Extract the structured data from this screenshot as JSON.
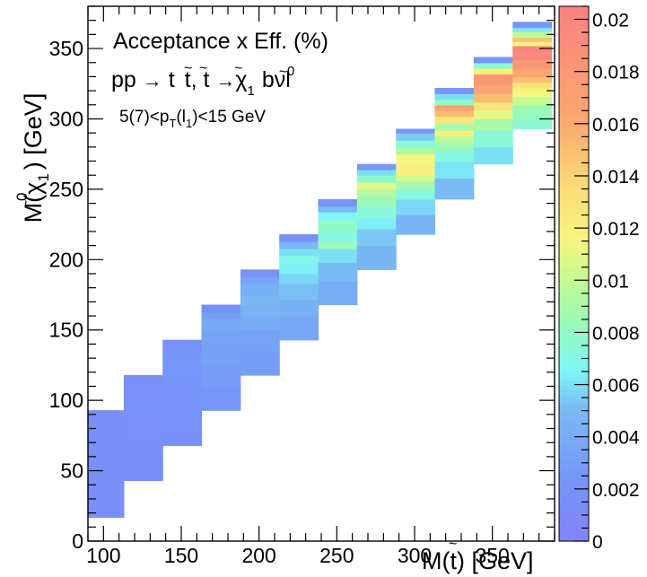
{
  "chart_data": {
    "type": "heatmap",
    "title": "",
    "xlabel": "M(t̃) [GeV]",
    "ylabel": "M(χ̃₁⁰) [GeV]",
    "xlim": [
      90,
      390
    ],
    "ylim": [
      0,
      380
    ],
    "xticks": [
      100,
      150,
      200,
      250,
      300,
      350
    ],
    "yticks": [
      0,
      50,
      100,
      150,
      200,
      250,
      300,
      350
    ],
    "zlim": [
      0,
      0.0205
    ],
    "zticks": [
      0,
      0.002,
      0.004,
      0.006,
      0.008,
      0.01,
      0.012,
      0.014,
      0.016,
      0.018,
      0.02
    ],
    "annotations": {
      "line1": "Acceptance x Eff. (%)",
      "line2_process": "pp → t̃ t̃,  t̃ → χ̃₁⁰ bνl",
      "line3_cut": "5(7)<pT(l1)<15 GeV"
    },
    "columns": [
      {
        "x": [
          88,
          113
        ],
        "cells": [
          [
            17,
            27,
            0.0015
          ],
          [
            27,
            40,
            0.0016
          ],
          [
            40,
            52,
            0.0016
          ],
          [
            52,
            64,
            0.0017
          ],
          [
            64,
            76,
            0.0017
          ],
          [
            76,
            85,
            0.0016
          ],
          [
            85,
            93,
            0.0015
          ]
        ]
      },
      {
        "x": [
          113,
          138
        ],
        "cells": [
          [
            43,
            55,
            0.0016
          ],
          [
            55,
            70,
            0.0017
          ],
          [
            70,
            80,
            0.0018
          ],
          [
            80,
            93,
            0.0018
          ],
          [
            93,
            101,
            0.0019
          ],
          [
            101,
            110,
            0.0018
          ],
          [
            110,
            118,
            0.0016
          ]
        ]
      },
      {
        "x": [
          138,
          163
        ],
        "cells": [
          [
            68,
            80,
            0.0017
          ],
          [
            80,
            95,
            0.0019
          ],
          [
            95,
            110,
            0.0021
          ],
          [
            110,
            120,
            0.0022
          ],
          [
            120,
            130,
            0.0025
          ],
          [
            130,
            137,
            0.0023
          ],
          [
            137,
            143,
            0.0019
          ]
        ]
      },
      {
        "x": [
          163,
          188
        ],
        "cells": [
          [
            93,
            110,
            0.0024
          ],
          [
            110,
            125,
            0.0028
          ],
          [
            125,
            140,
            0.0032
          ],
          [
            140,
            150,
            0.0034
          ],
          [
            150,
            158,
            0.0037
          ],
          [
            158,
            163,
            0.003
          ],
          [
            163,
            168,
            0.0018
          ]
        ]
      },
      {
        "x": [
          188,
          213
        ],
        "cells": [
          [
            118,
            135,
            0.003
          ],
          [
            135,
            150,
            0.0034
          ],
          [
            150,
            160,
            0.0039
          ],
          [
            160,
            168,
            0.0045
          ],
          [
            168,
            175,
            0.0048
          ],
          [
            175,
            183,
            0.0042
          ],
          [
            183,
            188,
            0.0035
          ],
          [
            188,
            193,
            0.0018
          ]
        ]
      },
      {
        "x": [
          213,
          238
        ],
        "cells": [
          [
            143,
            160,
            0.0036
          ],
          [
            160,
            172,
            0.0044
          ],
          [
            172,
            183,
            0.0052
          ],
          [
            183,
            190,
            0.0058
          ],
          [
            190,
            197,
            0.0064
          ],
          [
            197,
            203,
            0.007
          ],
          [
            203,
            208,
            0.006
          ],
          [
            208,
            213,
            0.0048
          ],
          [
            213,
            218,
            0.002
          ]
        ]
      },
      {
        "x": [
          238,
          263
        ],
        "cells": [
          [
            168,
            185,
            0.004
          ],
          [
            185,
            198,
            0.005
          ],
          [
            198,
            208,
            0.006
          ],
          [
            208,
            213,
            0.0085
          ],
          [
            213,
            220,
            0.0072
          ],
          [
            220,
            228,
            0.008
          ],
          [
            228,
            234,
            0.0066
          ],
          [
            234,
            238,
            0.0048
          ],
          [
            238,
            243,
            0.002
          ]
        ]
      },
      {
        "x": [
          263,
          288
        ],
        "cells": [
          [
            193,
            210,
            0.0046
          ],
          [
            210,
            222,
            0.0054
          ],
          [
            222,
            230,
            0.0064
          ],
          [
            230,
            238,
            0.0074
          ],
          [
            238,
            245,
            0.0084
          ],
          [
            245,
            250,
            0.0094
          ],
          [
            250,
            255,
            0.0108
          ],
          [
            255,
            260,
            0.0078
          ],
          [
            260,
            264,
            0.006
          ],
          [
            264,
            268,
            0.0025
          ]
        ]
      },
      {
        "x": [
          288,
          313
        ],
        "cells": [
          [
            218,
            232,
            0.0046
          ],
          [
            232,
            243,
            0.0058
          ],
          [
            243,
            250,
            0.0072
          ],
          [
            250,
            256,
            0.0088
          ],
          [
            256,
            260,
            0.0104
          ],
          [
            260,
            268,
            0.0118
          ],
          [
            268,
            275,
            0.0114
          ],
          [
            275,
            280,
            0.0094
          ],
          [
            280,
            285,
            0.0072
          ],
          [
            285,
            290,
            0.0055
          ],
          [
            290,
            293,
            0.0025
          ]
        ]
      },
      {
        "x": [
          313,
          338
        ],
        "cells": [
          [
            243,
            258,
            0.005
          ],
          [
            258,
            270,
            0.0062
          ],
          [
            270,
            278,
            0.0072
          ],
          [
            278,
            283,
            0.0086
          ],
          [
            283,
            288,
            0.0096
          ],
          [
            288,
            292,
            0.012
          ],
          [
            292,
            297,
            0.009
          ],
          [
            297,
            302,
            0.0128
          ],
          [
            302,
            306,
            0.0152
          ],
          [
            306,
            310,
            0.017
          ],
          [
            310,
            314,
            0.008
          ],
          [
            314,
            318,
            0.006
          ],
          [
            318,
            322,
            0.0025
          ]
        ]
      },
      {
        "x": [
          338,
          363
        ],
        "cells": [
          [
            268,
            280,
            0.006
          ],
          [
            280,
            292,
            0.0075
          ],
          [
            292,
            300,
            0.009
          ],
          [
            300,
            306,
            0.011
          ],
          [
            306,
            312,
            0.0128
          ],
          [
            312,
            318,
            0.015
          ],
          [
            318,
            324,
            0.0165
          ],
          [
            324,
            332,
            0.018
          ],
          [
            332,
            336,
            0.012
          ],
          [
            336,
            340,
            0.0075
          ],
          [
            340,
            344,
            0.0025
          ]
        ]
      },
      {
        "x": [
          363,
          388
        ],
        "cells": [
          [
            293,
            298,
            0.0075
          ],
          [
            298,
            304,
            0.008
          ],
          [
            304,
            310,
            0.0085
          ],
          [
            310,
            316,
            0.01
          ],
          [
            316,
            322,
            0.0115
          ],
          [
            322,
            326,
            0.0128
          ],
          [
            326,
            330,
            0.015
          ],
          [
            330,
            336,
            0.0165
          ],
          [
            336,
            342,
            0.018
          ],
          [
            342,
            348,
            0.0195
          ],
          [
            348,
            352,
            0.02
          ],
          [
            352,
            355,
            0.012
          ],
          [
            355,
            358,
            0.0148
          ],
          [
            358,
            362,
            0.01
          ],
          [
            362,
            365,
            0.0062
          ],
          [
            365,
            369,
            0.0025
          ]
        ]
      }
    ]
  }
}
